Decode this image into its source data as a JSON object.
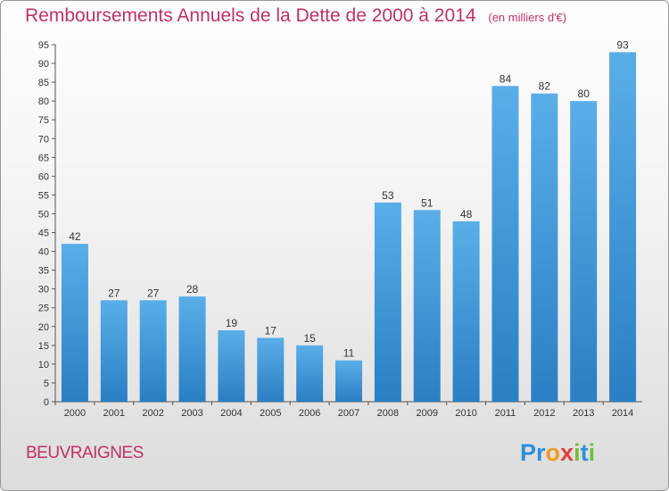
{
  "header": {
    "title": "Remboursements Annuels de la Dette de 2000 à 2014",
    "unit": "(en milliers d'€)"
  },
  "footer": {
    "city": "BEUVRAIGNES",
    "logo_parts": [
      {
        "text": "P",
        "color": "#2e8fd6"
      },
      {
        "text": "r",
        "color": "#2e8fd6"
      },
      {
        "text": "o",
        "color": "#f29a1f"
      },
      {
        "text": "x",
        "color": "#e43d3d"
      },
      {
        "text": "i",
        "color": "#6fbf3a"
      },
      {
        "text": "t",
        "color": "#2e8fd6"
      },
      {
        "text": "i",
        "color": "#6fbf3a"
      }
    ]
  },
  "chart_data": {
    "type": "bar",
    "title": "Remboursements Annuels de la Dette de 2000 à 2014",
    "subtitle": "(en milliers d'€)",
    "xlabel": "",
    "ylabel": "",
    "categories": [
      "2000",
      "2001",
      "2002",
      "2003",
      "2004",
      "2005",
      "2006",
      "2007",
      "2008",
      "2009",
      "2010",
      "2011",
      "2012",
      "2013",
      "2014"
    ],
    "values": [
      42,
      27,
      27,
      28,
      19,
      17,
      15,
      11,
      53,
      51,
      48,
      84,
      82,
      80,
      93
    ],
    "ylim": [
      0,
      95
    ],
    "yticks": [
      0,
      5,
      10,
      15,
      20,
      25,
      30,
      35,
      40,
      45,
      50,
      55,
      60,
      65,
      70,
      75,
      80,
      85,
      90,
      95
    ],
    "grid": false,
    "legend": "none",
    "bar_color_top": "#5aaee8",
    "bar_color_bottom": "#2a7fc4"
  }
}
